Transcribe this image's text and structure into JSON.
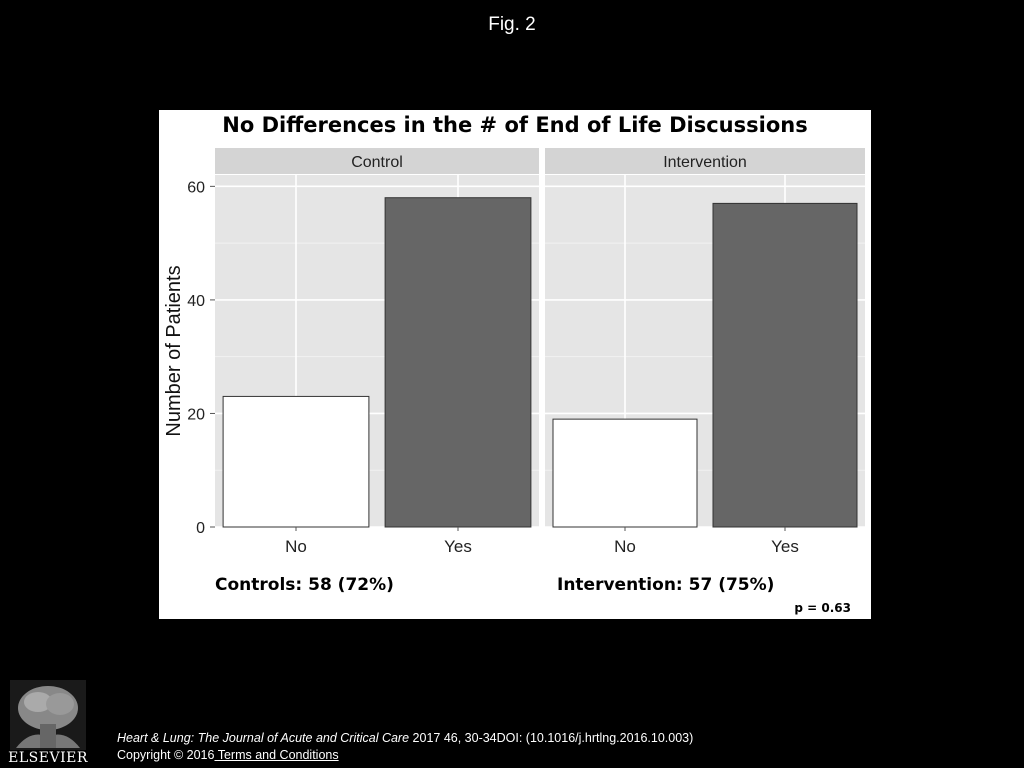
{
  "fig_label": "Fig. 2",
  "chart_data": {
    "type": "bar",
    "title": "No Differences in the # of End of Life Discussions",
    "ylabel": "Number of Patients",
    "xlabel": "",
    "ylim": [
      0,
      62
    ],
    "yticks": [
      0,
      20,
      40,
      60
    ],
    "grid": true,
    "panels": [
      {
        "name": "Control",
        "categories": [
          "No",
          "Yes"
        ],
        "values": [
          23,
          58
        ],
        "summary": "Controls: 58 (72%)"
      },
      {
        "name": "Intervention",
        "categories": [
          "No",
          "Yes"
        ],
        "values": [
          19,
          57
        ],
        "summary": "Intervention: 57 (75%)"
      }
    ],
    "bar_colors": [
      "#ffffff",
      "#666666"
    ],
    "annotation": "p = 0.63"
  },
  "footer": {
    "journal": "Heart & Lung: The Journal of Acute and Critical Care",
    "citation_rest": " 2017 46, 30-34DOI: (10.1016/j.hrtlng.2016.10.003)",
    "copyright": "Copyright © 2016",
    "terms_link": " Terms and Conditions",
    "publisher": "ELSEVIER"
  }
}
